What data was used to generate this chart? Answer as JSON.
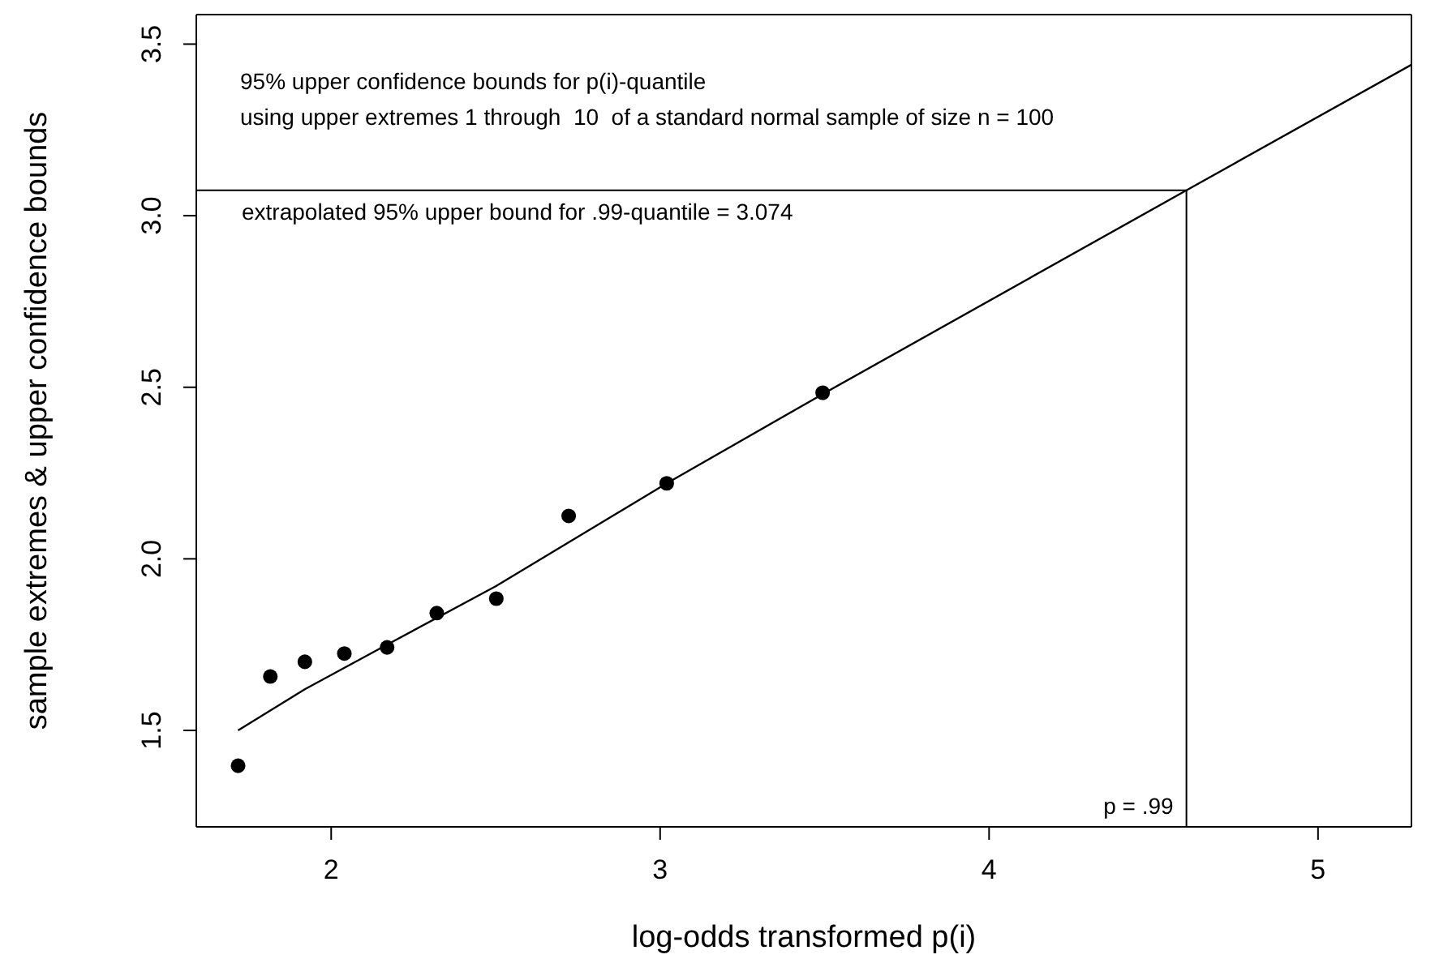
{
  "chart_data": {
    "type": "scatter",
    "xlabel": "log-odds transformed p(i)",
    "ylabel": "sample extremes & upper confidence bounds",
    "annotations": [
      "95% upper confidence bounds for p(i)-quantile",
      "using upper extremes 1 through  10  of a standard normal sample of size n = 100"
    ],
    "series": [
      {
        "color": "#000000",
        "marker": "circle",
        "x": [
          1.717,
          1.815,
          1.92,
          2.04,
          2.17,
          2.321,
          2.502,
          2.722,
          3.02,
          3.494
        ],
        "values": [
          1.397,
          1.657,
          1.7,
          1.724,
          1.742,
          1.842,
          1.884,
          2.125,
          2.22,
          2.484
        ]
      },
      {
        "type": "line",
        "color": "#000000",
        "marker": "none",
        "x": [
          1.717,
          1.92,
          2.17,
          2.5,
          3.02,
          3.494,
          4.6,
          5.284
        ],
        "values": [
          1.5,
          1.62,
          1.75,
          1.92,
          2.22,
          2.48,
          3.074,
          3.44
        ]
      }
    ],
    "ref_lines": [
      {
        "axis": "y",
        "value": 3.074,
        "label": "extrapolated 95% upper bound for .99-quantile = 3.074",
        "color": "#000000"
      },
      {
        "axis": "x",
        "value": 4.6,
        "label": "p = .99",
        "color": "#000000"
      }
    ],
    "xlim": [
      1.59,
      5.284
    ],
    "ylim": [
      1.219,
      3.586
    ],
    "xticks": [
      2,
      3,
      4,
      5
    ],
    "yticks": [
      1.5,
      {
        "value": 2,
        "label": "2.0"
      },
      2.5,
      {
        "value": 3,
        "label": "3.0"
      },
      3.5
    ]
  }
}
